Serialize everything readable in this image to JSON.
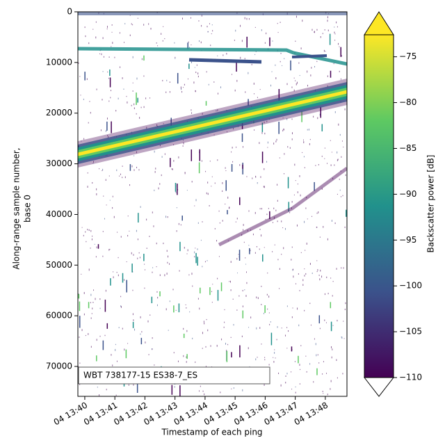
{
  "chart_data": {
    "type": "echogram",
    "xlabel": "Timestamp of each ping",
    "ylabel": [
      "Along-range sample number,",
      "base 0"
    ],
    "annotation": "WBT 738177-15 ES38-7_ES",
    "xlim": [
      39.77,
      48.72
    ],
    "xticks": [
      {
        "value": 40,
        "label": "04 13:40"
      },
      {
        "value": 41,
        "label": "04 13:41"
      },
      {
        "value": 42,
        "label": "04 13:42"
      },
      {
        "value": 43,
        "label": "04 13:43"
      },
      {
        "value": 44,
        "label": "04 13:44"
      },
      {
        "value": 45,
        "label": "04 13:45"
      },
      {
        "value": 46,
        "label": "04 13:46"
      },
      {
        "value": 47,
        "label": "04 13:47"
      },
      {
        "value": 48,
        "label": "04 13:48"
      }
    ],
    "ylim": [
      75900,
      0
    ],
    "yticks": [
      0,
      10000,
      20000,
      30000,
      40000,
      50000,
      60000,
      70000
    ],
    "colorbar": {
      "label": "Backscatter power [dB]",
      "lim": [
        -110,
        -72.6
      ],
      "ticks": [
        {
          "value": -110,
          "label": "−110"
        },
        {
          "value": -105,
          "label": "−105"
        },
        {
          "value": -100,
          "label": "−100"
        },
        {
          "value": -95,
          "label": "−95"
        },
        {
          "value": -90,
          "label": "−90"
        },
        {
          "value": -85,
          "label": "−85"
        },
        {
          "value": -80,
          "label": "−80"
        },
        {
          "value": -75,
          "label": "−75"
        }
      ],
      "colors": [
        "#440154",
        "#3b528b",
        "#21918c",
        "#5ec962",
        "#fde725"
      ],
      "over_color": "#fde725",
      "under_color": "#ffffff"
    }
  }
}
